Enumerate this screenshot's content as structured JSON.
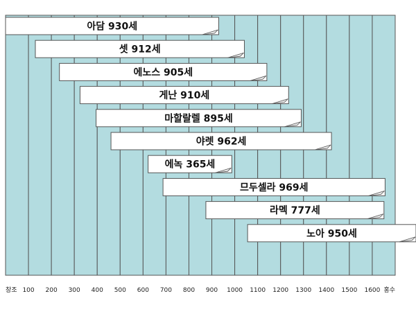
{
  "chart_data": {
    "type": "bar",
    "orientation": "horizontal-timeline",
    "x_ticks": [
      "창조",
      "100",
      "200",
      "300",
      "400",
      "500",
      "600",
      "700",
      "800",
      "900",
      "1000",
      "1100",
      "1200",
      "1300",
      "1400",
      "1500",
      "1600",
      "홍수"
    ],
    "xlim": [
      0,
      1656
    ],
    "grid": true,
    "colors": {
      "column_fill": "#b3dce0",
      "bar_fill": "#ffffff",
      "stroke": "#555555"
    },
    "series": [
      {
        "label": "아담 930세",
        "start": 0,
        "end": 930
      },
      {
        "label": "셋 912세",
        "start": 130,
        "end": 1042
      },
      {
        "label": "에노스 905세",
        "start": 235,
        "end": 1140
      },
      {
        "label": "게난 910세",
        "start": 325,
        "end": 1235
      },
      {
        "label": "마할랄렐 895세",
        "start": 395,
        "end": 1290
      },
      {
        "label": "야렛 962세",
        "start": 460,
        "end": 1422
      },
      {
        "label": "에녹 365세",
        "start": 622,
        "end": 987
      },
      {
        "label": "므두셀라 969세",
        "start": 687,
        "end": 1656
      },
      {
        "label": "라멕 777세",
        "start": 874,
        "end": 1651
      },
      {
        "label": "노아 950세",
        "start": 1056,
        "end": 2006
      }
    ]
  }
}
